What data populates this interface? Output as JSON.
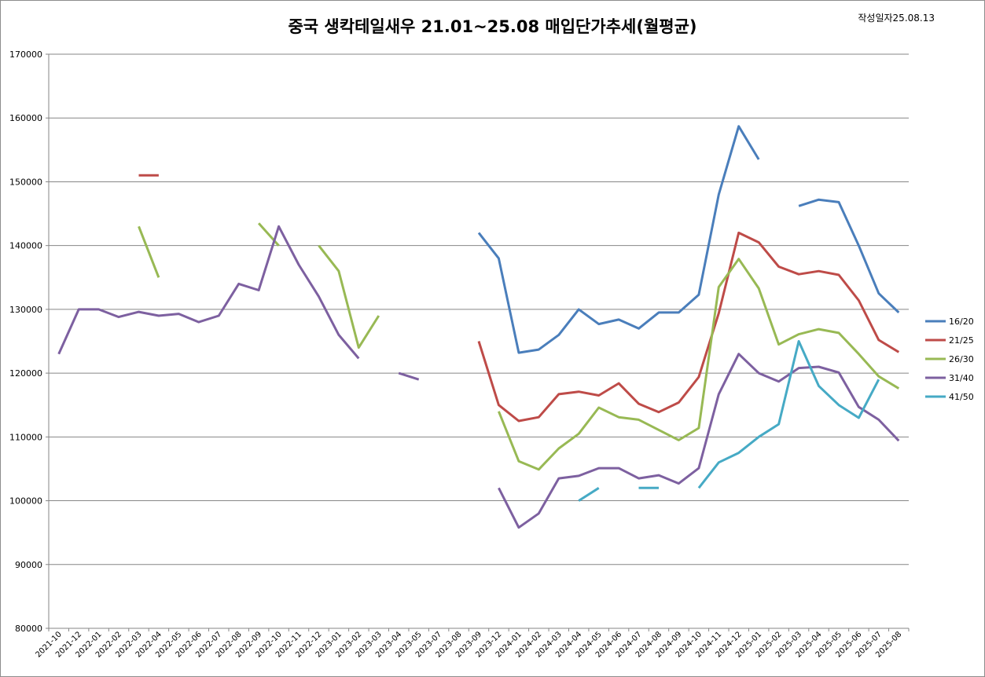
{
  "chart_data": {
    "type": "line",
    "title": "중국 생칵테일새우 21.01~25.08 매입단가추세(월평균)",
    "note": "작성일자25.08.13",
    "xlabel": "",
    "ylabel": "",
    "ylim": [
      80000,
      170000
    ],
    "yticks": [
      80000,
      90000,
      100000,
      110000,
      120000,
      130000,
      140000,
      150000,
      160000,
      170000
    ],
    "grid": true,
    "legend_position": "right",
    "categories": [
      "2021-10",
      "2021-12",
      "2022-01",
      "2022-02",
      "2022-03",
      "2022-04",
      "2022-05",
      "2022-06",
      "2022-07",
      "2022-08",
      "2022-09",
      "2022-10",
      "2022-11",
      "2022-12",
      "2023-01",
      "2023-02",
      "2023-03",
      "2023-04",
      "2023-05",
      "2023-07",
      "2023-08",
      "2023-09",
      "2023-12",
      "2024-01",
      "2024-02",
      "2024-03",
      "2024-04",
      "2024-05",
      "2024-06",
      "2024-07",
      "2024-08",
      "2024-09",
      "2024-10",
      "2024-11",
      "2024-12",
      "2025-01",
      "2025-02",
      "2025-03",
      "2025-04",
      "2025-05",
      "2025-06",
      "2025-07",
      "2025-08"
    ],
    "series": [
      {
        "name": "16/20",
        "color": "#4a7ebb",
        "values": [
          null,
          null,
          null,
          null,
          null,
          null,
          null,
          null,
          null,
          null,
          null,
          null,
          null,
          null,
          null,
          null,
          null,
          null,
          null,
          null,
          null,
          142000,
          138000,
          123200,
          123700,
          126000,
          130000,
          127700,
          128400,
          127000,
          129500,
          129500,
          132300,
          148000,
          158700,
          153500,
          null,
          146200,
          147200,
          146800,
          140000,
          132500,
          129500
        ]
      },
      {
        "name": "21/25",
        "color": "#be4b48",
        "values": [
          null,
          null,
          null,
          null,
          151000,
          151000,
          null,
          null,
          null,
          null,
          null,
          null,
          null,
          null,
          null,
          null,
          null,
          null,
          null,
          null,
          null,
          125000,
          115000,
          112500,
          113100,
          116700,
          117100,
          116500,
          118400,
          115200,
          113900,
          115400,
          119400,
          129400,
          142000,
          140500,
          136700,
          135500,
          136000,
          135400,
          131400,
          125200,
          123300
        ]
      },
      {
        "name": "26/30",
        "color": "#98b954",
        "values": [
          null,
          null,
          null,
          null,
          143000,
          135000,
          null,
          null,
          null,
          null,
          143500,
          140000,
          null,
          140000,
          136000,
          124000,
          129000,
          null,
          null,
          null,
          null,
          null,
          114000,
          106200,
          104900,
          108200,
          110500,
          114600,
          113100,
          112700,
          111100,
          109500,
          111400,
          133500,
          137900,
          133300,
          124500,
          126100,
          126900,
          126300,
          123000,
          119500,
          117600
        ]
      },
      {
        "name": "31/40",
        "color": "#7d60a0",
        "values": [
          123000,
          130000,
          130000,
          128800,
          129600,
          129000,
          129300,
          128000,
          129000,
          134000,
          133000,
          143000,
          137000,
          132000,
          126000,
          122300,
          null,
          120000,
          119000,
          null,
          null,
          null,
          102000,
          95800,
          98000,
          103500,
          103900,
          105100,
          105100,
          103500,
          104000,
          102700,
          105100,
          116700,
          123000,
          120000,
          118700,
          120800,
          121000,
          120100,
          114700,
          112700,
          109400
        ]
      },
      {
        "name": "41/50",
        "color": "#46aac5",
        "values": [
          null,
          null,
          null,
          null,
          null,
          null,
          null,
          null,
          null,
          null,
          null,
          null,
          null,
          null,
          null,
          null,
          null,
          null,
          null,
          null,
          null,
          null,
          null,
          null,
          null,
          null,
          100000,
          102000,
          null,
          102000,
          102000,
          null,
          102000,
          106000,
          107500,
          110000,
          112000,
          125000,
          118000,
          115000,
          113000,
          119000,
          null
        ]
      }
    ]
  }
}
